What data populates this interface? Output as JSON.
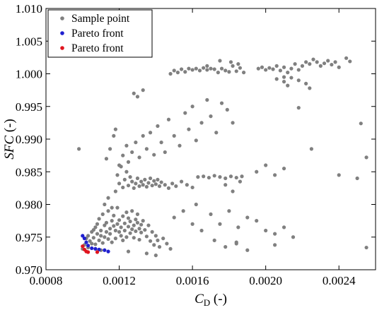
{
  "chart_data": {
    "type": "scatter",
    "title": "",
    "xlabel": {
      "main": "C",
      "sub": "D",
      "unit": " (-)"
    },
    "ylabel": {
      "main": "SFC",
      "unit": " (-)"
    },
    "xlim": [
      0.0008,
      0.0026
    ],
    "ylim": [
      0.97,
      1.01
    ],
    "x_ticks": [
      0.0008,
      0.0012,
      0.0016,
      0.002,
      0.0024
    ],
    "x_tick_labels": [
      "0.0008",
      "0.0012",
      "0.0016",
      "0.0020",
      "0.0024"
    ],
    "y_ticks": [
      0.97,
      0.975,
      0.98,
      0.985,
      0.99,
      0.995,
      1.0,
      1.005,
      1.01
    ],
    "y_tick_labels": [
      "0.970",
      "0.975",
      "0.980",
      "0.985",
      "0.990",
      "0.995",
      "1.000",
      "1.005",
      "1.010"
    ],
    "grid": false,
    "legend_position": "top-left",
    "series": [
      {
        "name": "Sample point",
        "color": "#808080",
        "points": [
          [
            0.00098,
            0.9885
          ],
          [
            0.00102,
            0.9748
          ],
          [
            0.00103,
            0.9752
          ],
          [
            0.00104,
            0.9744
          ],
          [
            0.00105,
            0.974
          ],
          [
            0.00105,
            0.9758
          ],
          [
            0.00106,
            0.9761
          ],
          [
            0.00106,
            0.9749
          ],
          [
            0.00107,
            0.9765
          ],
          [
            0.00107,
            0.9739
          ],
          [
            0.00108,
            0.9755
          ],
          [
            0.00108,
            0.977
          ],
          [
            0.00109,
            0.9745
          ],
          [
            0.00109,
            0.9778
          ],
          [
            0.0011,
            0.9752
          ],
          [
            0.0011,
            0.976
          ],
          [
            0.00111,
            0.9741
          ],
          [
            0.00111,
            0.9785
          ],
          [
            0.00112,
            0.9768
          ],
          [
            0.00112,
            0.975
          ],
          [
            0.00113,
            0.9772
          ],
          [
            0.00113,
            0.9758
          ],
          [
            0.00114,
            0.9747
          ],
          [
            0.00114,
            0.979
          ],
          [
            0.00115,
            0.9763
          ],
          [
            0.00115,
            0.9755
          ],
          [
            0.00116,
            0.9775
          ],
          [
            0.00116,
            0.9742
          ],
          [
            0.00117,
            0.9767
          ],
          [
            0.00117,
            0.9783
          ],
          [
            0.00118,
            0.976
          ],
          [
            0.00118,
            0.9748
          ],
          [
            0.00119,
            0.977
          ],
          [
            0.00119,
            0.9795
          ],
          [
            0.0012,
            0.9758
          ],
          [
            0.0012,
            0.9776
          ],
          [
            0.00121,
            0.9752
          ],
          [
            0.00121,
            0.9765
          ],
          [
            0.00122,
            0.9782
          ],
          [
            0.00122,
            0.9745
          ],
          [
            0.00123,
            0.9771
          ],
          [
            0.00123,
            0.976
          ],
          [
            0.00124,
            0.9788
          ],
          [
            0.00124,
            0.975
          ],
          [
            0.00125,
            0.9766
          ],
          [
            0.00125,
            0.9779
          ],
          [
            0.00126,
            0.9756
          ],
          [
            0.00126,
            0.9774
          ],
          [
            0.00127,
            0.9762
          ],
          [
            0.00127,
            0.979
          ],
          [
            0.00128,
            0.9768
          ],
          [
            0.00128,
            0.9749
          ],
          [
            0.00129,
            0.9777
          ],
          [
            0.00129,
            0.9759
          ],
          [
            0.0013,
            0.9772
          ],
          [
            0.0013,
            0.9785
          ],
          [
            0.00131,
            0.9763
          ],
          [
            0.00131,
            0.9746
          ],
          [
            0.00132,
            0.9769
          ],
          [
            0.00132,
            0.9757
          ],
          [
            0.00133,
            0.9775
          ],
          [
            0.00134,
            0.9761
          ],
          [
            0.00135,
            0.9751
          ],
          [
            0.00136,
            0.9768
          ],
          [
            0.00137,
            0.9744
          ],
          [
            0.00138,
            0.9758
          ],
          [
            0.00139,
            0.9738
          ],
          [
            0.0014,
            0.9752
          ],
          [
            0.00141,
            0.9745
          ],
          [
            0.00142,
            0.9735
          ],
          [
            0.00144,
            0.9748
          ],
          [
            0.00146,
            0.974
          ],
          [
            0.00148,
            0.9732
          ],
          [
            0.0014,
            0.9722
          ],
          [
            0.00118,
            0.982
          ],
          [
            0.00119,
            0.9845
          ],
          [
            0.0012,
            0.9832
          ],
          [
            0.00121,
            0.9858
          ],
          [
            0.00122,
            0.9826
          ],
          [
            0.00123,
            0.9838
          ],
          [
            0.00124,
            0.985
          ],
          [
            0.00125,
            0.9829
          ],
          [
            0.00126,
            0.9842
          ],
          [
            0.00127,
            0.9835
          ],
          [
            0.00128,
            0.9825
          ],
          [
            0.00129,
            0.9832
          ],
          [
            0.0013,
            0.984
          ],
          [
            0.00131,
            0.9828
          ],
          [
            0.00132,
            0.9835
          ],
          [
            0.00133,
            0.983
          ],
          [
            0.00134,
            0.9838
          ],
          [
            0.00135,
            0.9827
          ],
          [
            0.00136,
            0.9833
          ],
          [
            0.00137,
            0.984
          ],
          [
            0.00138,
            0.9829
          ],
          [
            0.00139,
            0.9836
          ],
          [
            0.0014,
            0.9831
          ],
          [
            0.00141,
            0.9838
          ],
          [
            0.00142,
            0.9828
          ],
          [
            0.00143,
            0.9834
          ],
          [
            0.00145,
            0.983
          ],
          [
            0.00147,
            0.9825
          ],
          [
            0.00149,
            0.9832
          ],
          [
            0.00151,
            0.9828
          ],
          [
            0.00154,
            0.9835
          ],
          [
            0.00157,
            0.983
          ],
          [
            0.0016,
            0.9826
          ],
          [
            0.00113,
            0.987
          ],
          [
            0.00115,
            0.9885
          ],
          [
            0.00117,
            0.9905
          ],
          [
            0.00118,
            0.9915
          ],
          [
            0.0012,
            0.986
          ],
          [
            0.00122,
            0.9875
          ],
          [
            0.00124,
            0.989
          ],
          [
            0.00125,
            0.9865
          ],
          [
            0.00127,
            0.988
          ],
          [
            0.00129,
            0.9895
          ],
          [
            0.00131,
            0.9872
          ],
          [
            0.00133,
            0.9905
          ],
          [
            0.00135,
            0.9885
          ],
          [
            0.00137,
            0.991
          ],
          [
            0.00139,
            0.9876
          ],
          [
            0.00141,
            0.992
          ],
          [
            0.00143,
            0.9895
          ],
          [
            0.00145,
            0.988
          ],
          [
            0.00147,
            0.993
          ],
          [
            0.0015,
            0.9905
          ],
          [
            0.00153,
            0.989
          ],
          [
            0.00156,
            0.994
          ],
          [
            0.00158,
            0.9915
          ],
          [
            0.0016,
            0.995
          ],
          [
            0.00162,
            0.9898
          ],
          [
            0.00165,
            0.9925
          ],
          [
            0.00168,
            0.996
          ],
          [
            0.0017,
            0.9935
          ],
          [
            0.00173,
            0.991
          ],
          [
            0.00176,
            0.9955
          ],
          [
            0.00179,
            0.9945
          ],
          [
            0.00182,
            0.9925
          ],
          [
            0.00128,
            0.997
          ],
          [
            0.00133,
            0.9975
          ],
          [
            0.0013,
            0.9965
          ],
          [
            0.0011,
            0.973
          ],
          [
            0.00112,
            0.98
          ],
          [
            0.00114,
            0.981
          ],
          [
            0.00116,
            0.9795
          ],
          [
            0.0015,
            0.978
          ],
          [
            0.00155,
            0.979
          ],
          [
            0.0016,
            0.977
          ],
          [
            0.00165,
            0.976
          ],
          [
            0.0017,
            0.9785
          ],
          [
            0.00175,
            0.977
          ],
          [
            0.0018,
            0.979
          ],
          [
            0.00185,
            0.9765
          ],
          [
            0.0019,
            0.978
          ],
          [
            0.00195,
            0.9775
          ],
          [
            0.002,
            0.976
          ],
          [
            0.00172,
            0.9745
          ],
          [
            0.00178,
            0.9735
          ],
          [
            0.00184,
            0.974
          ],
          [
            0.0019,
            0.973
          ],
          [
            0.00205,
            0.9755
          ],
          [
            0.0021,
            0.9765
          ],
          [
            0.00215,
            0.975
          ],
          [
            0.00162,
            0.98
          ],
          [
            0.00163,
            0.9842
          ],
          [
            0.00166,
            0.9843
          ],
          [
            0.00169,
            0.9841
          ],
          [
            0.00172,
            0.9844
          ],
          [
            0.00175,
            0.9842
          ],
          [
            0.00178,
            0.984
          ],
          [
            0.00181,
            0.9843
          ],
          [
            0.00184,
            0.9841
          ],
          [
            0.00187,
            0.9843
          ],
          [
            0.00178,
            0.983
          ],
          [
            0.00182,
            0.982
          ],
          [
            0.00186,
            0.9835
          ],
          [
            0.00195,
            0.985
          ],
          [
            0.002,
            0.986
          ],
          [
            0.00205,
            0.9845
          ],
          [
            0.0021,
            0.9855
          ],
          [
            0.00225,
            0.9885
          ],
          [
            0.0024,
            0.9845
          ],
          [
            0.0025,
            0.984
          ],
          [
            0.00252,
            0.9924
          ],
          [
            0.00255,
            0.9872
          ],
          [
            0.00148,
            1.0
          ],
          [
            0.0015,
            1.0005
          ],
          [
            0.00152,
            1.0002
          ],
          [
            0.00154,
            1.0007
          ],
          [
            0.00156,
            1.0003
          ],
          [
            0.00158,
            1.0008
          ],
          [
            0.0016,
            1.0006
          ],
          [
            0.00162,
            1.0008
          ],
          [
            0.00164,
            1.0005
          ],
          [
            0.00166,
            1.0009
          ],
          [
            0.00168,
            1.0006
          ],
          [
            0.0017,
            1.0008
          ],
          [
            0.00172,
            1.0007
          ],
          [
            0.00174,
            1.0002
          ],
          [
            0.00176,
            1.0008
          ],
          [
            0.00178,
            1.0005
          ],
          [
            0.0018,
            1.0003
          ],
          [
            0.00182,
            1.0012
          ],
          [
            0.00184,
            1.0004
          ],
          [
            0.00186,
            1.0009
          ],
          [
            0.00188,
            1.0002
          ],
          [
            0.00168,
            1.0012
          ],
          [
            0.00175,
            1.002
          ],
          [
            0.00181,
            1.0018
          ],
          [
            0.00185,
            1.0015
          ],
          [
            0.00196,
            1.0008
          ],
          [
            0.00198,
            1.001
          ],
          [
            0.002,
            1.0006
          ],
          [
            0.00202,
            1.0009
          ],
          [
            0.00204,
            1.0007
          ],
          [
            0.00206,
            1.0012
          ],
          [
            0.00208,
            1.0005
          ],
          [
            0.0021,
            1.001
          ],
          [
            0.00212,
            1.0002
          ],
          [
            0.00214,
            1.0008
          ],
          [
            0.00216,
            1.0015
          ],
          [
            0.00218,
            1.0006
          ],
          [
            0.0022,
            1.0012
          ],
          [
            0.00222,
            1.0018
          ],
          [
            0.00224,
            1.0015
          ],
          [
            0.00226,
            1.0022
          ],
          [
            0.00228,
            1.0018
          ],
          [
            0.0023,
            1.0012
          ],
          [
            0.00232,
            1.0016
          ],
          [
            0.00234,
            1.002
          ],
          [
            0.00236,
            1.0014
          ],
          [
            0.00238,
            1.0018
          ],
          [
            0.0024,
            1.001
          ],
          [
            0.00244,
            1.0024
          ],
          [
            0.00246,
            1.0019
          ],
          [
            0.00206,
            0.9992
          ],
          [
            0.0021,
            0.9988
          ],
          [
            0.00212,
            0.9982
          ],
          [
            0.00214,
            0.9994
          ],
          [
            0.00218,
            0.999
          ],
          [
            0.00222,
            0.9985
          ],
          [
            0.00224,
            0.9978
          ],
          [
            0.00218,
            0.9948
          ],
          [
            0.0021,
            0.9995
          ],
          [
            0.001,
            0.9732
          ],
          [
            0.00101,
            0.9738
          ],
          [
            0.00103,
            0.9734
          ],
          [
            0.00255,
            0.9734
          ],
          [
            0.00205,
            0.9738
          ],
          [
            0.00184,
            0.9742
          ],
          [
            0.00135,
            0.9725
          ],
          [
            0.00125,
            0.9728
          ]
        ]
      },
      {
        "name": "Pareto front",
        "color": "#1f1fcf",
        "points": [
          [
            0.00101,
            0.9748
          ],
          [
            0.00102,
            0.9742
          ],
          [
            0.00103,
            0.9737
          ],
          [
            0.00105,
            0.9733
          ],
          [
            0.00107,
            0.9732
          ],
          [
            0.00109,
            0.9731
          ],
          [
            0.00112,
            0.973
          ],
          [
            0.00114,
            0.9728
          ],
          [
            0.001,
            0.9752
          ]
        ]
      },
      {
        "name": "Pareto front",
        "color": "#e0141e",
        "points": [
          [
            0.001,
            0.9736
          ],
          [
            0.00101,
            0.9731
          ],
          [
            0.00102,
            0.9728
          ],
          [
            0.00103,
            0.9727
          ],
          [
            0.00108,
            0.9727
          ]
        ]
      }
    ]
  }
}
